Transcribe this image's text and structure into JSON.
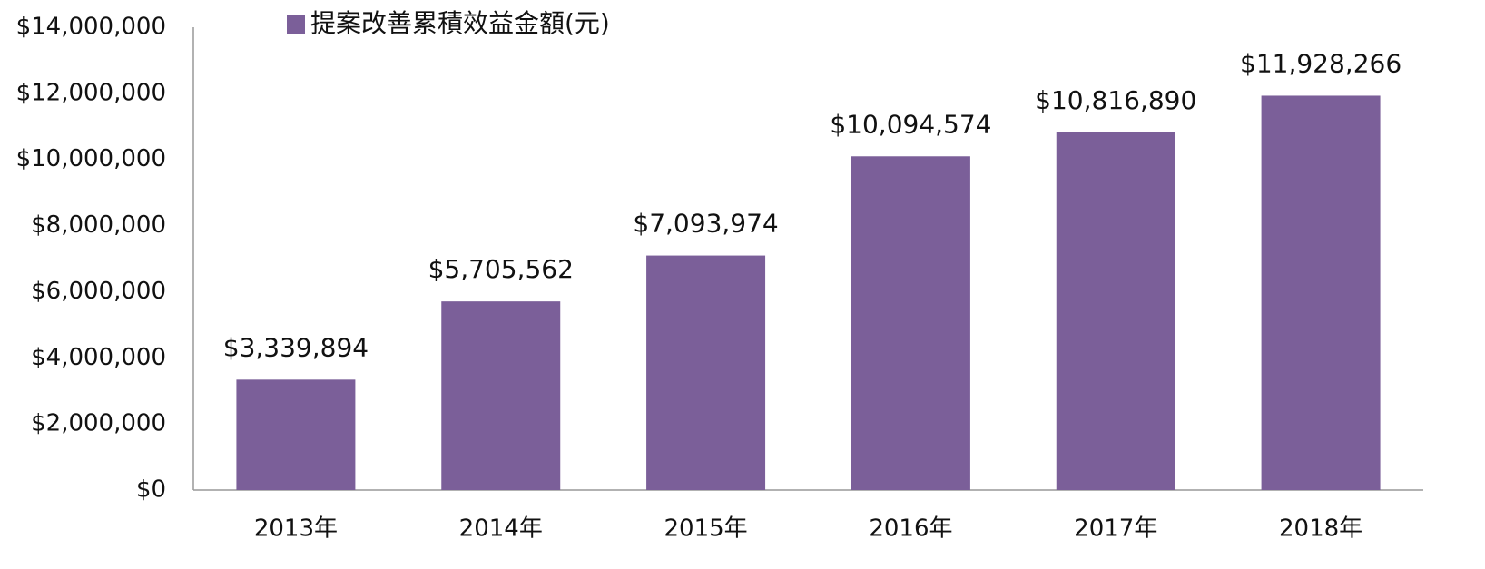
{
  "chart_data": {
    "type": "bar",
    "categories": [
      "2013年",
      "2014年",
      "2015年",
      "2016年",
      "2017年",
      "2018年"
    ],
    "series": [
      {
        "name": "提案改善累積效益金額(元)",
        "color": "#7b5f99",
        "values": [
          3339894,
          5705562,
          7093974,
          10094574,
          10816890,
          11928266
        ],
        "value_labels": [
          "$3,339,894",
          "$5,705,562",
          "$7,093,974",
          "$10,094,574",
          "$10,816,890",
          "$11,928,266"
        ]
      }
    ],
    "ylim": [
      0,
      14000000
    ],
    "yticks": [
      {
        "value": 0,
        "label": "$0"
      },
      {
        "value": 2000000,
        "label": "$2,000,000"
      },
      {
        "value": 4000000,
        "label": "$4,000,000"
      },
      {
        "value": 6000000,
        "label": "$6,000,000"
      },
      {
        "value": 8000000,
        "label": "$8,000,000"
      },
      {
        "value": 10000000,
        "label": "$10,000,000"
      },
      {
        "value": 12000000,
        "label": "$12,000,000"
      },
      {
        "value": 14000000,
        "label": "$14,000,000"
      }
    ],
    "grid": false,
    "legend": "top"
  }
}
